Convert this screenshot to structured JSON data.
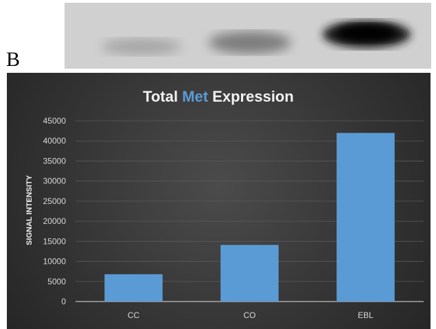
{
  "figure": {
    "panel_letter": "B",
    "blot_lanes": [
      "CC",
      "CO",
      "EBL"
    ]
  },
  "colors": {
    "bar": "#5b9bd5",
    "title_text": "#f2f2f2",
    "title_accent": "#5b9bd5",
    "axis_text": "#d9d9d9",
    "gridline": "#5a5a5a"
  },
  "chart_data": {
    "type": "bar",
    "title_parts": [
      "Total ",
      "Met",
      " Expression"
    ],
    "title": "Total Met Expression",
    "xlabel": "",
    "ylabel": "SIGNAL INTENSITY",
    "categories": [
      "CC",
      "CO",
      "EBL"
    ],
    "values": [
      6800,
      14100,
      42000
    ],
    "ylim": [
      0,
      45000
    ],
    "yticks": [
      "0",
      "5000",
      "10000",
      "15000",
      "20000",
      "25000",
      "30000",
      "35000",
      "40000",
      "45000"
    ],
    "grid": true,
    "legend": "none"
  }
}
